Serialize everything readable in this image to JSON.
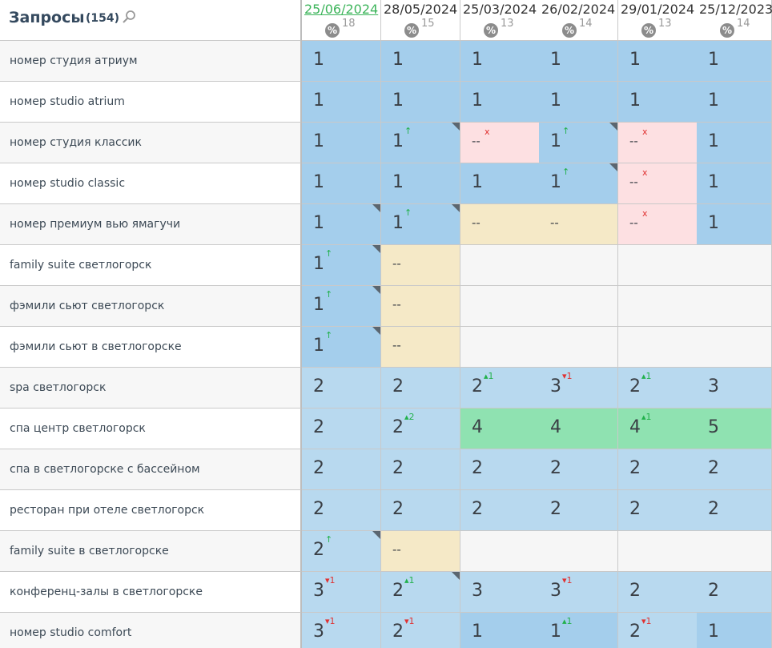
{
  "header": {
    "title": "Запросы",
    "count": "(154)",
    "columns": [
      {
        "date": "25/06/2024",
        "n": 18,
        "active": true
      },
      {
        "date": "28/05/2024",
        "n": 15
      },
      {
        "date": "25/03/2024",
        "n": 13
      },
      {
        "date": "26/02/2024",
        "n": 14
      },
      {
        "date": "29/01/2024",
        "n": 13
      },
      {
        "date": "25/12/2023",
        "n": 14
      }
    ]
  },
  "pct_icon": "%",
  "rows": [
    {
      "query": "номер студия атриум",
      "cells": [
        {
          "v": 1
        },
        {
          "v": 1
        },
        {
          "v": 1
        },
        {
          "v": 1
        },
        {
          "v": 1
        },
        {
          "v": 1
        }
      ]
    },
    {
      "query": "номер studio atrium",
      "cells": [
        {
          "v": 1
        },
        {
          "v": 1
        },
        {
          "v": 1
        },
        {
          "v": 1
        },
        {
          "v": 1
        },
        {
          "v": 1
        }
      ]
    },
    {
      "query": "номер студия классик",
      "cells": [
        {
          "v": 1
        },
        {
          "v": 1,
          "c": "↑",
          "up": true,
          "flag": true
        },
        {
          "v": "--",
          "c": "x",
          "up": false
        },
        {
          "v": 1,
          "c": "↑",
          "up": true,
          "flag": true
        },
        {
          "v": "--",
          "c": "x",
          "up": false
        },
        {
          "v": 1
        }
      ]
    },
    {
      "query": "номер studio classic",
      "cells": [
        {
          "v": 1
        },
        {
          "v": 1
        },
        {
          "v": 1
        },
        {
          "v": 1,
          "c": "↑",
          "up": true,
          "flag": true
        },
        {
          "v": "--",
          "c": "x",
          "up": false
        },
        {
          "v": 1
        }
      ]
    },
    {
      "query": "номер премиум вью ямагучи",
      "cells": [
        {
          "v": 1,
          "flag": true
        },
        {
          "v": 1,
          "c": "↑",
          "up": true,
          "flag": true
        },
        {
          "v": "--"
        },
        {
          "v": "--"
        },
        {
          "v": "--",
          "c": "x",
          "up": false
        },
        {
          "v": 1
        }
      ]
    },
    {
      "query": "family suite светлогорск",
      "cells": [
        {
          "v": 1,
          "c": "↑",
          "up": true,
          "flag": true
        },
        {
          "v": "--"
        },
        null,
        null,
        null,
        null
      ]
    },
    {
      "query": "фэмили сьют светлогорск",
      "cells": [
        {
          "v": 1,
          "c": "↑",
          "up": true,
          "flag": true
        },
        {
          "v": "--"
        },
        null,
        null,
        null,
        null
      ]
    },
    {
      "query": "фэмили сьют в светлогорске",
      "cells": [
        {
          "v": 1,
          "c": "↑",
          "up": true,
          "flag": true
        },
        {
          "v": "--"
        },
        null,
        null,
        null,
        null
      ]
    },
    {
      "query": "spa светлогорск",
      "cells": [
        {
          "v": 2
        },
        {
          "v": 2
        },
        {
          "v": 2,
          "c": "▴1",
          "up": true
        },
        {
          "v": 3,
          "c": "▾1",
          "up": false
        },
        {
          "v": 2,
          "c": "▴1",
          "up": true
        },
        {
          "v": 3
        }
      ]
    },
    {
      "query": "спа центр светлогорск",
      "cells": [
        {
          "v": 2
        },
        {
          "v": 2,
          "c": "▴2",
          "up": true
        },
        {
          "v": 4
        },
        {
          "v": 4
        },
        {
          "v": 4,
          "c": "▴1",
          "up": true
        },
        {
          "v": 5
        }
      ]
    },
    {
      "query": "спа в светлогорске с бассейном",
      "cells": [
        {
          "v": 2
        },
        {
          "v": 2
        },
        {
          "v": 2
        },
        {
          "v": 2
        },
        {
          "v": 2
        },
        {
          "v": 2
        }
      ]
    },
    {
      "query": "ресторан при отеле светлогорск",
      "cells": [
        {
          "v": 2
        },
        {
          "v": 2
        },
        {
          "v": 2
        },
        {
          "v": 2
        },
        {
          "v": 2
        },
        {
          "v": 2
        }
      ]
    },
    {
      "query": "family suite в светлогорске",
      "cells": [
        {
          "v": 2,
          "c": "↑",
          "up": true,
          "flag": true
        },
        {
          "v": "--"
        },
        null,
        null,
        null,
        null
      ]
    },
    {
      "query": "конференц-залы в светлогорске",
      "cells": [
        {
          "v": 3,
          "c": "▾1",
          "up": false
        },
        {
          "v": 2,
          "c": "▴1",
          "up": true,
          "flag": true
        },
        {
          "v": 3
        },
        {
          "v": 3,
          "c": "▾1",
          "up": false
        },
        {
          "v": 2
        },
        {
          "v": 2
        }
      ]
    },
    {
      "query": "номер studio comfort",
      "cells": [
        {
          "v": 3,
          "c": "▾1",
          "up": false
        },
        {
          "v": 2,
          "c": "▾1",
          "up": false
        },
        {
          "v": 1
        },
        {
          "v": 1,
          "c": "▴1",
          "up": true
        },
        {
          "v": 2,
          "c": "▾1",
          "up": false
        },
        {
          "v": 1
        }
      ]
    }
  ]
}
